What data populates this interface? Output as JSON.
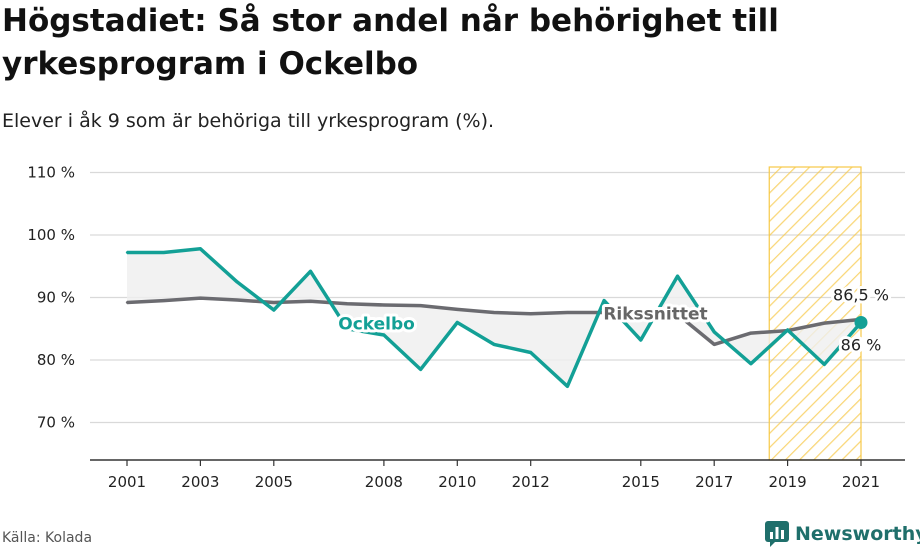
{
  "header": {
    "title": "Högstadiet: Så stor andel når behörighet till yrkesprogram i Ockelbo",
    "subtitle": "Elever i åk 9 som är behöriga till yrkesprogram (%)."
  },
  "footer": {
    "source": "Källa: Kolada",
    "brand": "Newsworthy"
  },
  "colors": {
    "ockelbo": "#13a096",
    "riksnittet": "#6b6b70",
    "gap_fill": "#efefef",
    "highlight": "#f7c948",
    "grid": "#d9d9d9"
  },
  "chart_data": {
    "type": "line",
    "x": [
      2001,
      2002,
      2003,
      2004,
      2005,
      2006,
      2007,
      2008,
      2009,
      2010,
      2011,
      2012,
      2013,
      2014,
      2015,
      2016,
      2017,
      2018,
      2019,
      2020,
      2021
    ],
    "x_tick_labels": [
      "2001",
      "2003",
      "2005",
      "2008",
      "2010",
      "2012",
      "2015",
      "2017",
      "2019",
      "2021"
    ],
    "y_tick_labels": [
      "70 %",
      "80 %",
      "90 %",
      "100 %",
      "110 %"
    ],
    "ylim": [
      64,
      112
    ],
    "series": [
      {
        "name": "Ockelbo",
        "values": [
          97.2,
          97.2,
          97.8,
          92.5,
          88.0,
          94.2,
          85.0,
          84.0,
          78.5,
          86.0,
          82.5,
          81.2,
          75.8,
          89.5,
          83.2,
          93.4,
          84.5,
          79.4,
          84.8,
          79.3,
          86.0
        ]
      },
      {
        "name": "Rikssnittet",
        "values": [
          89.2,
          89.5,
          89.9,
          89.6,
          89.2,
          89.4,
          89.0,
          88.8,
          88.7,
          88.1,
          87.6,
          87.4,
          87.6,
          87.6,
          87.4,
          87.3,
          82.5,
          84.3,
          84.7,
          85.9,
          86.5
        ]
      }
    ],
    "highlight_range": [
      2018.5,
      2021
    ],
    "end_labels": {
      "rikssnittet": "86,5 %",
      "ockelbo": "86 %"
    },
    "grid": true
  }
}
